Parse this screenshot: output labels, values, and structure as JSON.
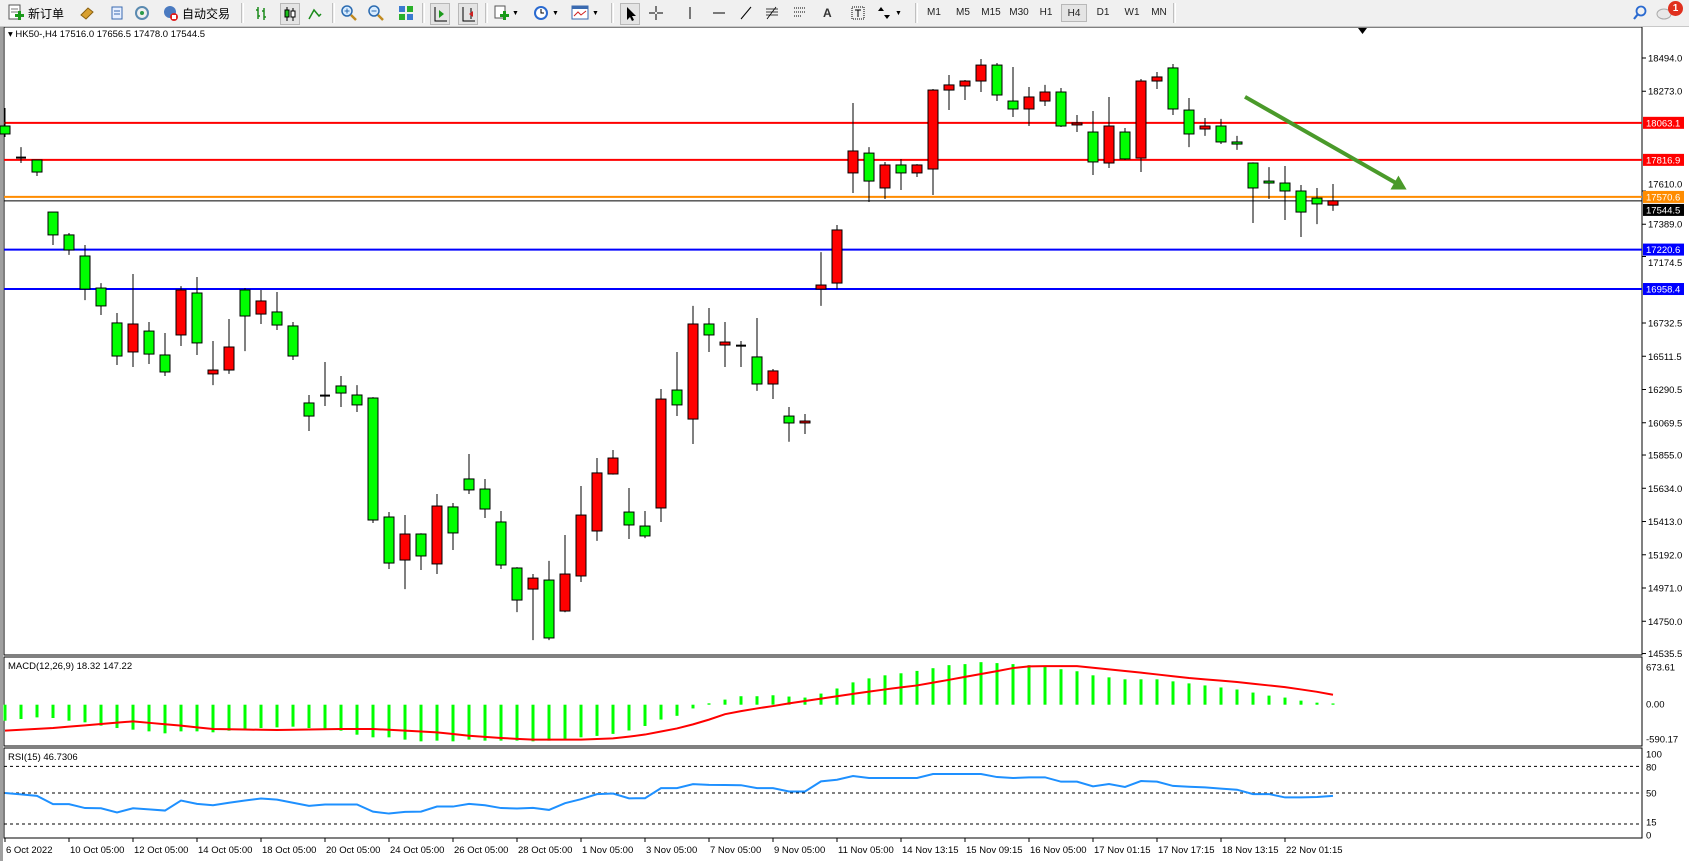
{
  "toolbar": {
    "new_order_label": "新订单",
    "auto_trading_label": "自动交易",
    "timeframes": [
      "M1",
      "M5",
      "M15",
      "M30",
      "H1",
      "H4",
      "D1",
      "W1",
      "MN"
    ],
    "active_timeframe": "H4",
    "notification_count": "1",
    "tools": [
      "book-icon",
      "market-watch-icon",
      "signal-icon",
      "bar-chart-icon",
      "candlestick-icon",
      "line-chart-icon",
      "zoom-in-icon",
      "zoom-out-icon",
      "tile-windows-icon",
      "auto-scroll-icon",
      "chart-shift-icon",
      "indicators-icon",
      "periods-icon",
      "templates-icon",
      "cursor-icon",
      "crosshair-icon",
      "vertical-line-icon",
      "horizontal-line-icon",
      "trendline-icon",
      "fibonacci-icon",
      "channel-icon",
      "text-icon",
      "text-label-icon",
      "arrows-icon",
      "search-icon",
      "notification-icon"
    ]
  },
  "chart": {
    "symbol_header": "HK50-,H4  17516.0 17656.5 17478.0 17544.5",
    "colors": {
      "bull": "#ff0000",
      "bear": "#00ff00",
      "wick": "#000000",
      "arrow": "#4a9a2a"
    },
    "price_ticks": [
      "18494.0",
      "18273.0",
      "17610.0",
      "17389.0",
      "17174.5",
      "16732.5",
      "16511.5",
      "16290.5",
      "16069.5",
      "15855.0",
      "15634.0",
      "15413.0",
      "15192.0",
      "14971.0",
      "14750.0",
      "14535.5"
    ],
    "levels": [
      {
        "price": 18063.1,
        "label": "18063.1",
        "color": "#ff0000"
      },
      {
        "price": 17816.9,
        "label": "17816.9",
        "color": "#ff0000"
      },
      {
        "price": 17570.6,
        "label": "17570.6",
        "color": "#ff8c00"
      },
      {
        "price": 17220.6,
        "label": "17220.6",
        "color": "#0000ff"
      },
      {
        "price": 16958.4,
        "label": "16958.4",
        "color": "#0000ff"
      }
    ],
    "bid": {
      "price": 17544.5,
      "label": "17544.5",
      "color": "#000000"
    },
    "time_labels": [
      {
        "bar": 0,
        "text": "6 Oct 2022"
      },
      {
        "bar": 4,
        "text": "10 Oct 05:00"
      },
      {
        "bar": 8,
        "text": "12 Oct 05:00"
      },
      {
        "bar": 12,
        "text": "14 Oct 05:00"
      },
      {
        "bar": 16,
        "text": "18 Oct 05:00"
      },
      {
        "bar": 20,
        "text": "20 Oct 05:00"
      },
      {
        "bar": 24,
        "text": "24 Oct 05:00"
      },
      {
        "bar": 28,
        "text": "26 Oct 05:00"
      },
      {
        "bar": 32,
        "text": "28 Oct 05:00"
      },
      {
        "bar": 36,
        "text": "1 Nov 05:00"
      },
      {
        "bar": 40,
        "text": "3 Nov 05:00"
      },
      {
        "bar": 44,
        "text": "7 Nov 05:00"
      },
      {
        "bar": 48,
        "text": "9 Nov 05:00"
      },
      {
        "bar": 52,
        "text": "11 Nov 05:00"
      },
      {
        "bar": 56,
        "text": "14 Nov 13:15"
      },
      {
        "bar": 60,
        "text": "15 Nov 09:15"
      },
      {
        "bar": 64,
        "text": "16 Nov 05:00"
      },
      {
        "bar": 68,
        "text": "17 Nov 01:15"
      },
      {
        "bar": 72,
        "text": "17 Nov 17:15"
      },
      {
        "bar": 76,
        "text": "18 Nov 13:15"
      },
      {
        "bar": 80,
        "text": "22 Nov 01:15"
      }
    ],
    "trend_arrow": {
      "from": {
        "bar": 77.5,
        "price": 18236
      },
      "to": {
        "bar": 87.6,
        "price": 17620
      },
      "direction": "down"
    }
  },
  "macd": {
    "header": "MACD(12,26,9) 18.32 147.22",
    "axis_labels": [
      "673.61",
      "0.00",
      "-590.17"
    ],
    "range": [
      -590.17,
      673.61
    ]
  },
  "rsi": {
    "header": "RSI(15) 46.7306",
    "axis_labels": [
      "100",
      "80",
      "50",
      "15",
      "0"
    ],
    "levels": [
      80,
      50,
      15
    ]
  },
  "chart_data": {
    "type": "candlestick",
    "symbol": "HK50-",
    "timeframe": "H4",
    "ylim": [
      14535.5,
      18494.0
    ],
    "ohlc": [
      [
        18042,
        18162,
        17969,
        17989
      ],
      [
        17832,
        17902,
        17796,
        17826
      ],
      [
        17816,
        17816,
        17710,
        17736
      ],
      [
        17470,
        17470,
        17251,
        17318
      ],
      [
        17318,
        17331,
        17185,
        17218
      ],
      [
        17178,
        17251,
        16885,
        16958
      ],
      [
        16965,
        16998,
        16786,
        16846
      ],
      [
        16733,
        16799,
        16453,
        16513
      ],
      [
        16540,
        17058,
        16440,
        16726
      ],
      [
        16679,
        16739,
        16460,
        16526
      ],
      [
        16520,
        16666,
        16380,
        16407
      ],
      [
        16653,
        16978,
        16580,
        16952
      ],
      [
        16932,
        17038,
        16520,
        16600
      ],
      [
        16394,
        16613,
        16320,
        16420
      ],
      [
        16420,
        16759,
        16394,
        16573
      ],
      [
        16952,
        16965,
        16546,
        16779
      ],
      [
        16792,
        16952,
        16726,
        16879
      ],
      [
        16806,
        16939,
        16686,
        16719
      ],
      [
        16713,
        16739,
        16487,
        16513
      ],
      [
        16201,
        16254,
        16015,
        16114
      ],
      [
        16250,
        16473,
        16181,
        16245
      ],
      [
        16314,
        16380,
        16174,
        16267
      ],
      [
        16254,
        16320,
        16141,
        16188
      ],
      [
        16234,
        16240,
        15403,
        15423
      ],
      [
        15443,
        15476,
        15097,
        15137
      ],
      [
        15157,
        15456,
        14964,
        15330
      ],
      [
        15330,
        15335,
        15091,
        15184
      ],
      [
        15131,
        15596,
        15064,
        15516
      ],
      [
        15510,
        15536,
        15224,
        15337
      ],
      [
        15696,
        15862,
        15596,
        15623
      ],
      [
        15629,
        15696,
        15436,
        15496
      ],
      [
        15410,
        15483,
        15097,
        15124
      ],
      [
        15104,
        15110,
        14811,
        14891
      ],
      [
        14964,
        15064,
        14625,
        15037
      ],
      [
        15024,
        15151,
        14625,
        14639
      ],
      [
        14818,
        15323,
        14810,
        15064
      ],
      [
        15051,
        15649,
        15011,
        15456
      ],
      [
        15350,
        15835,
        15284,
        15736
      ],
      [
        15729,
        15888,
        15725,
        15835
      ],
      [
        15476,
        15636,
        15297,
        15390
      ],
      [
        15383,
        15483,
        15303,
        15317
      ],
      [
        15503,
        16294,
        15410,
        16227
      ],
      [
        16287,
        16540,
        16114,
        16188
      ],
      [
        16094,
        16846,
        15928,
        16726
      ],
      [
        16726,
        16832,
        16540,
        16653
      ],
      [
        16586,
        16739,
        16440,
        16606
      ],
      [
        16582,
        16613,
        16440,
        16578
      ],
      [
        16507,
        16766,
        16281,
        16327
      ],
      [
        16327,
        16427,
        16227,
        16414
      ],
      [
        16114,
        16174,
        15943,
        16068
      ],
      [
        16068,
        16128,
        15995,
        16081
      ],
      [
        16958,
        17204,
        16846,
        16985
      ],
      [
        16998,
        17384,
        16958,
        17351
      ],
      [
        17730,
        18195,
        17597,
        17876
      ],
      [
        17862,
        17902,
        17537,
        17676
      ],
      [
        17630,
        17803,
        17557,
        17783
      ],
      [
        17783,
        17823,
        17617,
        17730
      ],
      [
        17730,
        17789,
        17703,
        17783
      ],
      [
        17756,
        18288,
        17583,
        18281
      ],
      [
        18281,
        18381,
        18148,
        18315
      ],
      [
        18308,
        18348,
        18215,
        18341
      ],
      [
        18341,
        18487,
        18268,
        18447
      ],
      [
        18447,
        18461,
        18208,
        18248
      ],
      [
        18208,
        18434,
        18102,
        18155
      ],
      [
        18155,
        18301,
        18042,
        18235
      ],
      [
        18208,
        18315,
        18175,
        18268
      ],
      [
        18268,
        18295,
        18035,
        18042
      ],
      [
        18049,
        18115,
        18002,
        18062
      ],
      [
        18002,
        18142,
        17716,
        17803
      ],
      [
        17796,
        18235,
        17763,
        18042
      ],
      [
        18002,
        18029,
        17816,
        17823
      ],
      [
        17829,
        18354,
        17736,
        18341
      ],
      [
        18341,
        18401,
        18288,
        18368
      ],
      [
        18428,
        18454,
        18115,
        18155
      ],
      [
        18148,
        18228,
        17902,
        17989
      ],
      [
        18022,
        18095,
        17976,
        18042
      ],
      [
        18042,
        18089,
        17922,
        17936
      ],
      [
        17936,
        17976,
        17883,
        17922
      ],
      [
        17796,
        17800,
        17397,
        17630
      ],
      [
        17676,
        17769,
        17557,
        17663
      ],
      [
        17663,
        17776,
        17417,
        17610
      ],
      [
        17610,
        17650,
        17304,
        17470
      ],
      [
        17563,
        17630,
        17390,
        17524
      ],
      [
        17516,
        17656.5,
        17478,
        17544.5
      ]
    ],
    "macd_histogram": [
      -236,
      -211,
      -187,
      -196,
      -236,
      -260,
      -309,
      -344,
      -368,
      -393,
      -422,
      -393,
      -393,
      -407,
      -383,
      -373,
      -344,
      -334,
      -324,
      -344,
      -358,
      -383,
      -442,
      -481,
      -481,
      -515,
      -540,
      -530,
      -540,
      -515,
      -530,
      -530,
      -530,
      -540,
      -530,
      -515,
      -481,
      -460,
      -430,
      -380,
      -314,
      -219,
      -164,
      -55,
      20,
      75,
      125,
      125,
      139,
      120,
      105,
      164,
      239,
      329,
      388,
      433,
      463,
      498,
      538,
      583,
      598,
      627,
      613,
      598,
      583,
      558,
      523,
      493,
      433,
      403,
      374,
      374,
      374,
      344,
      314,
      284,
      254,
      224,
      179,
      134,
      105,
      60,
      30,
      18.32
    ],
    "macd_signal": [
      -383,
      -370,
      -357,
      -344,
      -324,
      -305,
      -285,
      -265,
      -246,
      -267,
      -288,
      -309,
      -334,
      -358,
      -362,
      -366,
      -370,
      -373,
      -369,
      -365,
      -362,
      -358,
      -358,
      -358,
      -370,
      -383,
      -395,
      -408,
      -432,
      -457,
      -474,
      -491,
      -503,
      -515,
      -515,
      -515,
      -515,
      -505,
      -496,
      -470,
      -440,
      -395,
      -350,
      -290,
      -220,
      -140,
      -95,
      -55,
      -20,
      20,
      55,
      90,
      125,
      160,
      192,
      225,
      255,
      284,
      325,
      367,
      410,
      452,
      495,
      540,
      565,
      568,
      568,
      568,
      545,
      520,
      496,
      473,
      446,
      420,
      394,
      374,
      354,
      334,
      309,
      284,
      259,
      225,
      190,
      147.22
    ],
    "rsi": [
      50,
      48.5,
      46.8,
      37.4,
      37.4,
      33,
      32.8,
      28,
      32.8,
      31.5,
      30.2,
      41.5,
      37.7,
      36.2,
      39,
      41.5,
      43.8,
      42.5,
      39,
      35.5,
      37,
      37,
      37,
      29,
      26.8,
      28.7,
      29,
      34.7,
      34.7,
      37.7,
      36.2,
      33,
      32.5,
      33.2,
      30.9,
      38.5,
      43,
      48.7,
      49.4,
      44,
      44.1,
      55.5,
      55.5,
      60,
      59.2,
      59,
      58.8,
      55.5,
      55.5,
      51.7,
      51.7,
      63.1,
      65,
      69.2,
      66.9,
      66.9,
      66.9,
      66.9,
      71.4,
      71.4,
      71.4,
      71.4,
      68,
      66.9,
      67.7,
      67.7,
      62.8,
      62.8,
      57.5,
      60.2,
      56.8,
      63.5,
      62.8,
      58,
      57.1,
      56.3,
      55,
      53.7,
      48.8,
      48.8,
      45,
      45,
      45.5,
      46.7306
    ]
  }
}
